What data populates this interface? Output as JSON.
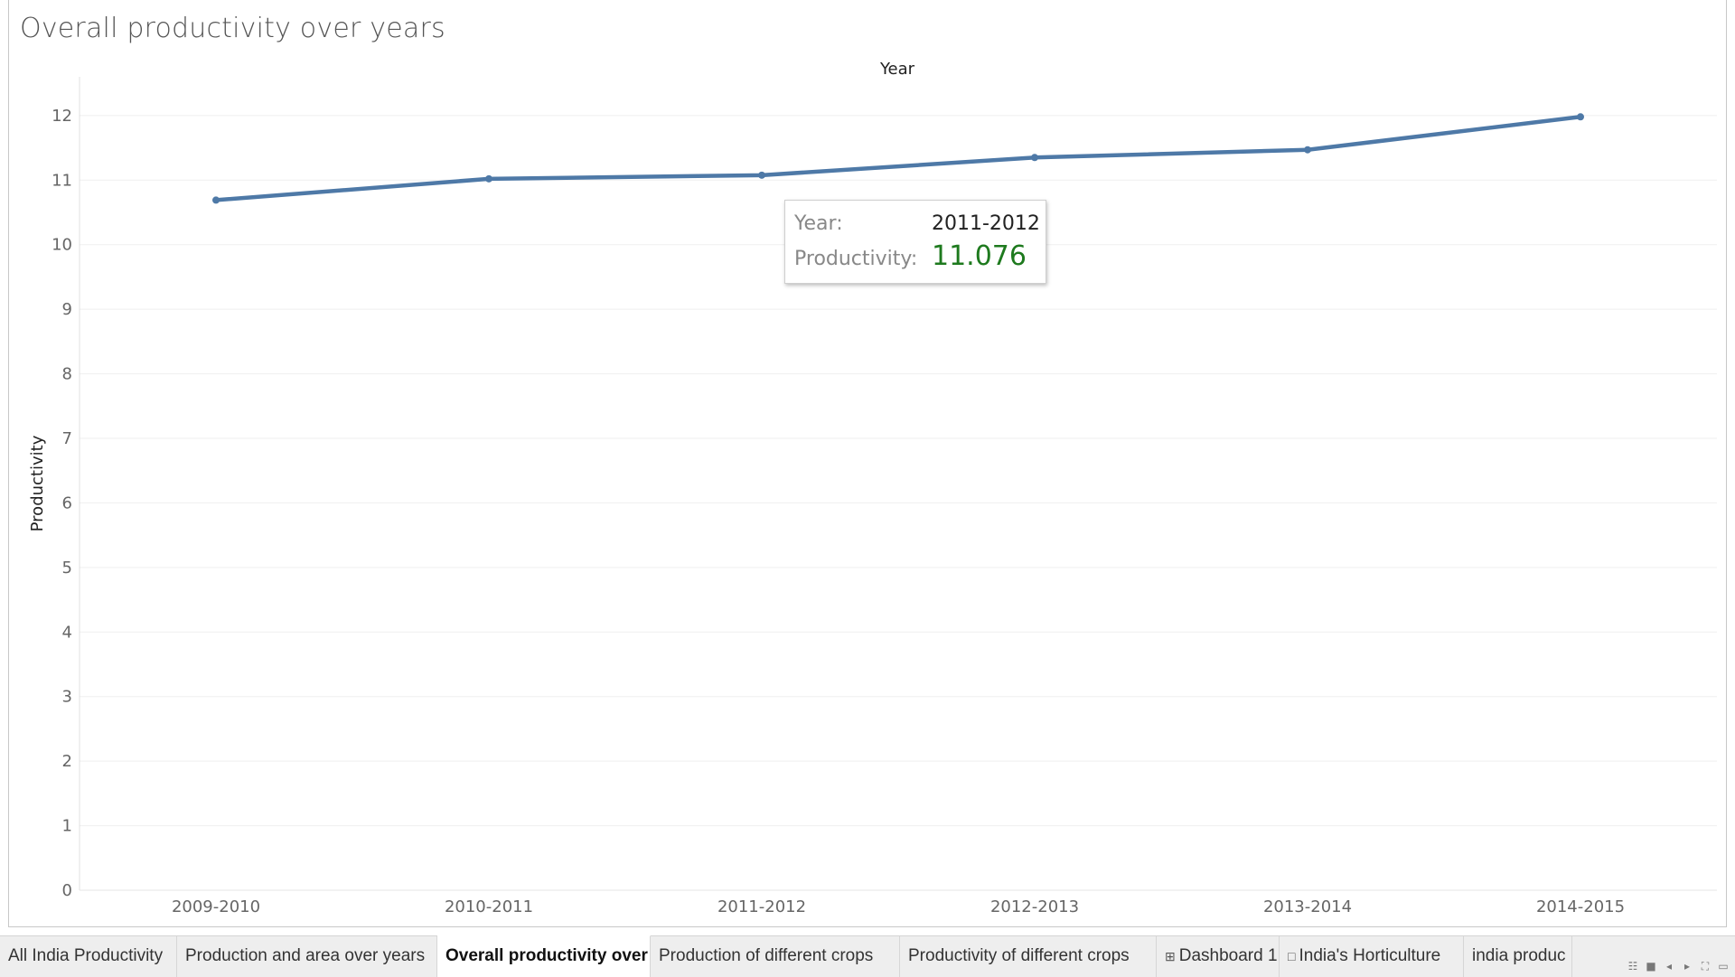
{
  "sheet_title": "Overall productivity over years",
  "tooltip": {
    "year_label": "Year:",
    "year_value": "2011-2012",
    "prod_label": "Productivity:",
    "prod_value": "11.076"
  },
  "tabs": [
    {
      "label": "All India Productivity",
      "active": false,
      "icon": ""
    },
    {
      "label": "Production and area over years",
      "active": false,
      "icon": ""
    },
    {
      "label": "Overall productivity over years",
      "active": true,
      "icon": ""
    },
    {
      "label": "Production of different crops",
      "active": false,
      "icon": ""
    },
    {
      "label": "Productivity of different crops",
      "active": false,
      "icon": ""
    },
    {
      "label": "Dashboard 1",
      "active": false,
      "icon": "dashboard-icon"
    },
    {
      "label": "India's Horticulture",
      "active": false,
      "icon": "story-icon"
    },
    {
      "label": "india produc",
      "active": false,
      "icon": ""
    }
  ],
  "tab_controls": [
    "grid-view-icon",
    "filmstrip-view-icon",
    "prev-sheet-icon",
    "next-sheet-icon",
    "fullscreen-icon",
    "presentation-icon"
  ],
  "colors": {
    "line": "#4e79a7",
    "tooltip_value": "#1e7a1e"
  },
  "chart_data": {
    "type": "line",
    "title": "Overall productivity over years",
    "xlabel": "Year",
    "ylabel": "Productivity",
    "categories": [
      "2009-2010",
      "2010-2011",
      "2011-2012",
      "2012-2013",
      "2013-2014",
      "2014-2015"
    ],
    "series": [
      {
        "values": [
          10.69,
          11.02,
          11.076,
          11.35,
          11.47,
          11.98
        ]
      }
    ],
    "ylim": [
      0,
      12.6
    ],
    "yticks": [
      0,
      1,
      2,
      3,
      4,
      5,
      6,
      7,
      8,
      9,
      10,
      11,
      12
    ],
    "grid": true,
    "legend": "none"
  }
}
